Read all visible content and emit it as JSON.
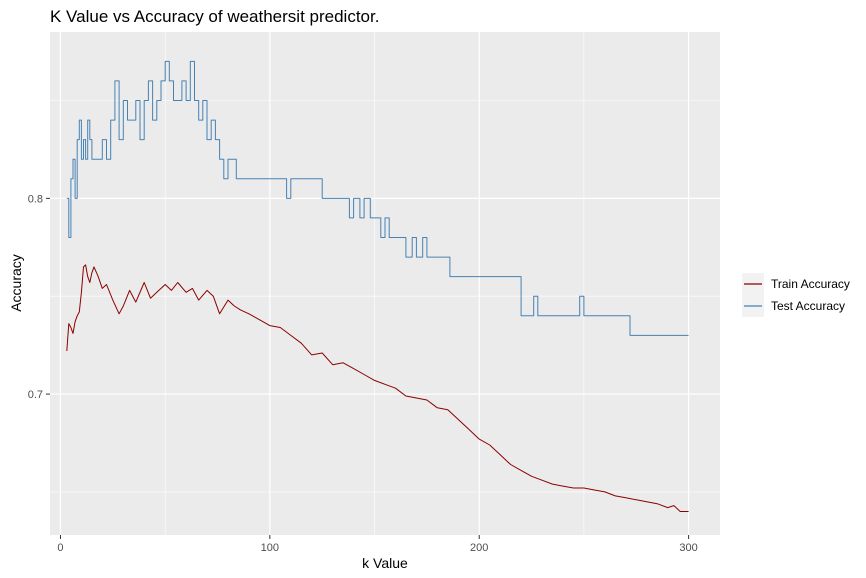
{
  "chart_data": {
    "type": "line",
    "title": "K Value vs Accuracy of weathersit predictor.",
    "xlabel": "k Value",
    "ylabel": "Accuracy",
    "xlim": [
      -5,
      315
    ],
    "ylim": [
      0.628,
      0.885
    ],
    "xticks": [
      0,
      100,
      200,
      300
    ],
    "xtick_labels": [
      "0",
      "100",
      "200",
      "300"
    ],
    "xminor": [
      50,
      150,
      250
    ],
    "yticks": [
      0.7,
      0.8
    ],
    "ytick_labels": [
      "0.7",
      "0.8"
    ],
    "yminor": [
      0.65,
      0.75,
      0.85
    ],
    "grid": true,
    "legend_position": "right",
    "panel_color": "#ebebeb",
    "series": [
      {
        "name": "Train Accuracy",
        "color": "#8b0000",
        "x": [
          3,
          4,
          5,
          6,
          7,
          8,
          9,
          10,
          11,
          12,
          13,
          14,
          15,
          16,
          18,
          20,
          22,
          25,
          28,
          30,
          33,
          36,
          40,
          43,
          46,
          50,
          53,
          56,
          60,
          63,
          66,
          70,
          73,
          76,
          80,
          83,
          86,
          90,
          95,
          100,
          105,
          110,
          115,
          120,
          125,
          130,
          135,
          140,
          145,
          150,
          155,
          160,
          165,
          170,
          175,
          180,
          185,
          190,
          195,
          200,
          205,
          210,
          215,
          220,
          225,
          230,
          235,
          240,
          245,
          250,
          255,
          260,
          265,
          270,
          275,
          280,
          285,
          290,
          293,
          296,
          300
        ],
        "values": [
          0.722,
          0.736,
          0.734,
          0.731,
          0.737,
          0.74,
          0.742,
          0.752,
          0.765,
          0.766,
          0.76,
          0.757,
          0.762,
          0.765,
          0.76,
          0.754,
          0.756,
          0.748,
          0.741,
          0.745,
          0.753,
          0.747,
          0.757,
          0.749,
          0.752,
          0.756,
          0.753,
          0.757,
          0.752,
          0.754,
          0.748,
          0.753,
          0.75,
          0.741,
          0.748,
          0.745,
          0.743,
          0.741,
          0.738,
          0.735,
          0.734,
          0.73,
          0.726,
          0.72,
          0.721,
          0.715,
          0.716,
          0.713,
          0.71,
          0.707,
          0.705,
          0.703,
          0.699,
          0.698,
          0.697,
          0.693,
          0.692,
          0.687,
          0.682,
          0.677,
          0.674,
          0.669,
          0.664,
          0.661,
          0.658,
          0.656,
          0.654,
          0.653,
          0.652,
          0.652,
          0.651,
          0.65,
          0.648,
          0.647,
          0.646,
          0.645,
          0.644,
          0.642,
          0.643,
          0.64,
          0.64
        ]
      },
      {
        "name": "Test Accuracy",
        "color": "#4682b4",
        "x": [
          3,
          4,
          5,
          6,
          7,
          8,
          9,
          10,
          11,
          12,
          13,
          14,
          15,
          16,
          18,
          20,
          22,
          24,
          26,
          28,
          30,
          32,
          34,
          36,
          38,
          40,
          42,
          44,
          46,
          48,
          50,
          52,
          54,
          56,
          58,
          60,
          62,
          64,
          66,
          68,
          70,
          72,
          74,
          76,
          78,
          80,
          82,
          84,
          86,
          88,
          90,
          95,
          100,
          105,
          108,
          110,
          112,
          115,
          120,
          125,
          130,
          135,
          138,
          140,
          143,
          145,
          148,
          150,
          153,
          155,
          157,
          160,
          165,
          168,
          170,
          173,
          175,
          178,
          180,
          182,
          184,
          186,
          190,
          195,
          200,
          205,
          210,
          215,
          220,
          222,
          224,
          226,
          228,
          230,
          235,
          240,
          245,
          248,
          250,
          252,
          255,
          260,
          265,
          270,
          272,
          275,
          280,
          285,
          290,
          295,
          300
        ],
        "values": [
          0.8,
          0.78,
          0.81,
          0.82,
          0.8,
          0.83,
          0.84,
          0.82,
          0.83,
          0.82,
          0.84,
          0.83,
          0.82,
          0.82,
          0.82,
          0.83,
          0.82,
          0.84,
          0.86,
          0.83,
          0.85,
          0.84,
          0.84,
          0.85,
          0.83,
          0.85,
          0.86,
          0.84,
          0.85,
          0.86,
          0.87,
          0.86,
          0.85,
          0.85,
          0.86,
          0.85,
          0.87,
          0.85,
          0.84,
          0.85,
          0.83,
          0.84,
          0.83,
          0.82,
          0.81,
          0.82,
          0.82,
          0.81,
          0.81,
          0.81,
          0.81,
          0.81,
          0.81,
          0.81,
          0.8,
          0.81,
          0.81,
          0.81,
          0.81,
          0.8,
          0.8,
          0.8,
          0.79,
          0.8,
          0.79,
          0.8,
          0.79,
          0.79,
          0.78,
          0.79,
          0.78,
          0.78,
          0.77,
          0.78,
          0.77,
          0.78,
          0.77,
          0.77,
          0.77,
          0.77,
          0.77,
          0.76,
          0.76,
          0.76,
          0.76,
          0.76,
          0.76,
          0.76,
          0.74,
          0.74,
          0.74,
          0.75,
          0.74,
          0.74,
          0.74,
          0.74,
          0.74,
          0.75,
          0.74,
          0.74,
          0.74,
          0.74,
          0.74,
          0.74,
          0.73,
          0.73,
          0.73,
          0.73,
          0.73,
          0.73,
          0.73
        ]
      }
    ]
  }
}
